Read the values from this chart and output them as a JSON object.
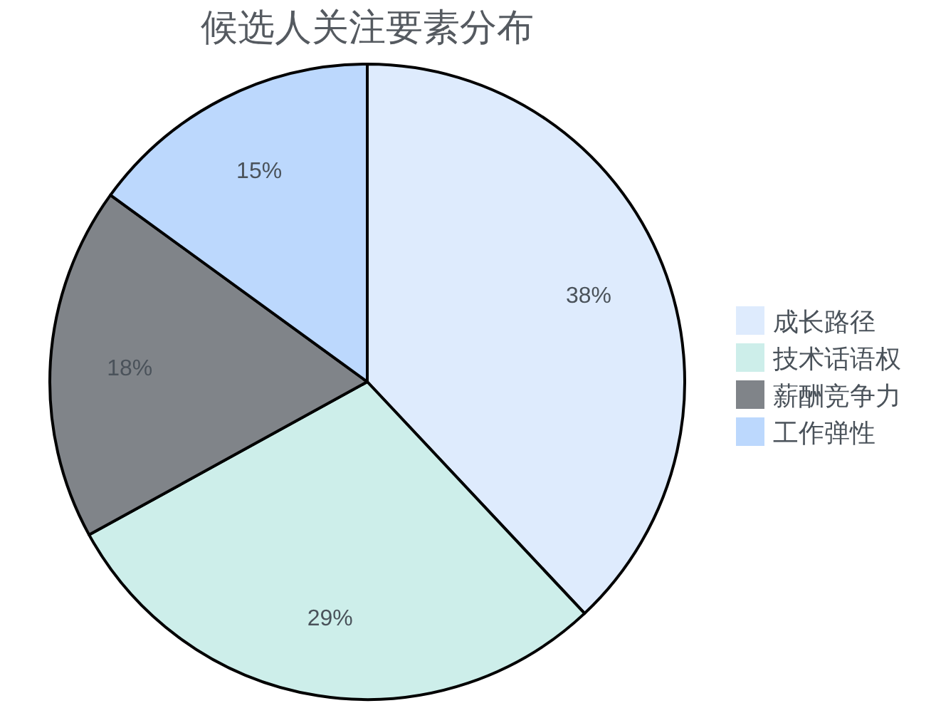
{
  "chart_data": {
    "type": "pie",
    "title": "候选人关注要素分布",
    "categories": [
      "成长路径",
      "技术话语权",
      "薪酬竞争力",
      "工作弹性"
    ],
    "values": [
      38,
      29,
      18,
      15
    ],
    "colors": [
      "#deebfd",
      "#cdeeea",
      "#808489",
      "#bcd8fd"
    ],
    "value_labels": [
      "38%",
      "29%",
      "18%",
      "15%"
    ],
    "legend": "right"
  }
}
